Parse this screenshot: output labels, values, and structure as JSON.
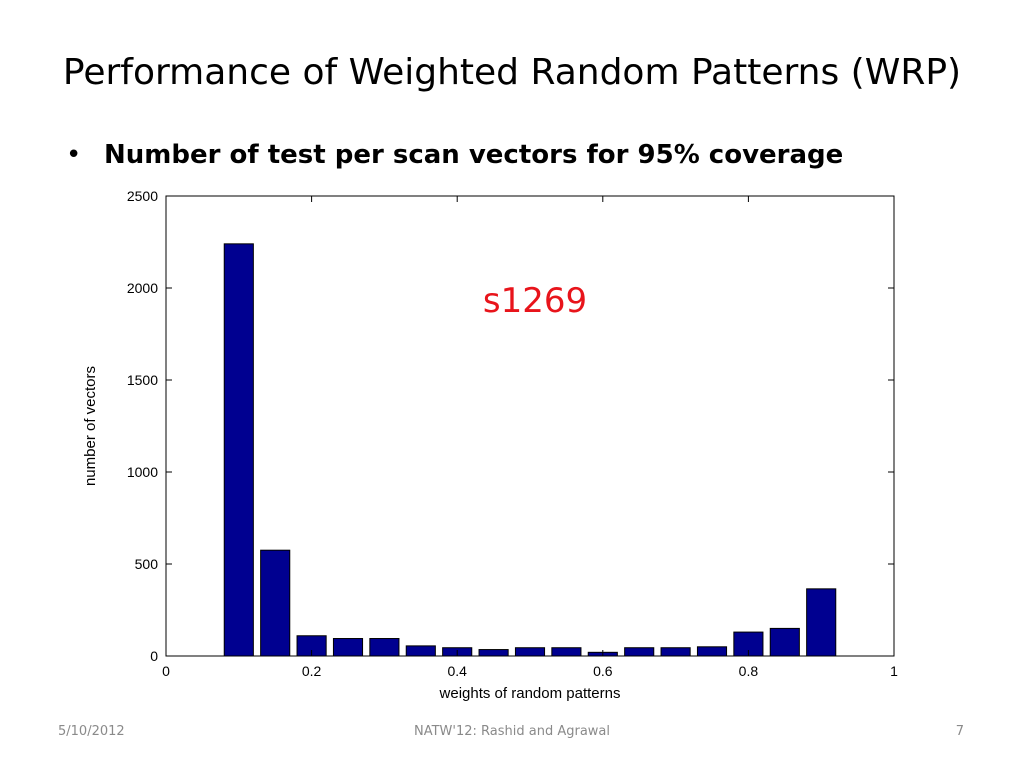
{
  "slide": {
    "title": "Performance of Weighted Random Patterns (WRP)",
    "bullet_symbol": "•",
    "bullet": "Number of test per scan vectors for 95% coverage"
  },
  "footer": {
    "date": "5/10/2012",
    "center": "NATW'12: Rashid and Agrawal",
    "page": "7"
  },
  "colors": {
    "bar_fill": "#000090",
    "annotation": "#e8141b"
  },
  "chart_data": {
    "type": "bar",
    "title": "",
    "annotation": "s1269",
    "xlabel": "weights of random patterns",
    "ylabel": "number of vectors",
    "xlim": [
      0,
      1
    ],
    "ylim": [
      0,
      2500
    ],
    "xticks": [
      "0",
      "0.2",
      "0.4",
      "0.6",
      "0.8",
      "1"
    ],
    "yticks": [
      "0",
      "500",
      "1000",
      "1500",
      "2000",
      "2500"
    ],
    "grid": false,
    "x": [
      0.1,
      0.15,
      0.2,
      0.25,
      0.3,
      0.35,
      0.4,
      0.45,
      0.5,
      0.55,
      0.6,
      0.65,
      0.7,
      0.75,
      0.8,
      0.85,
      0.9
    ],
    "values": [
      2240,
      575,
      110,
      95,
      95,
      55,
      45,
      35,
      45,
      45,
      20,
      45,
      45,
      50,
      130,
      150,
      365
    ]
  }
}
